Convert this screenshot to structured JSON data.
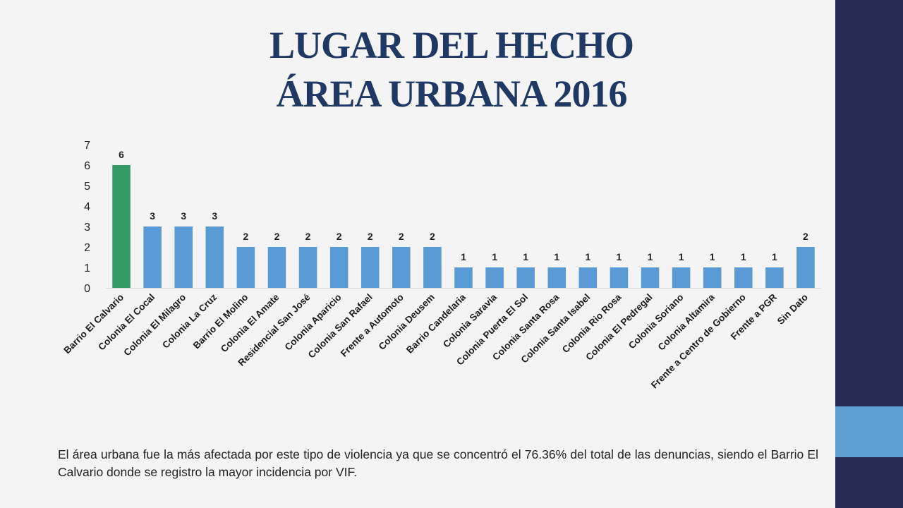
{
  "title": {
    "line1": "LUGAR DEL HECHO",
    "line2": "ÁREA URBANA 2016"
  },
  "caption": "El área urbana fue la más afectada por este tipo de violencia ya que se concentró el 76.36% del total de las denuncias, siendo el Barrio El Calvario donde se registro la mayor incidencia por VIF.",
  "colors": {
    "background": "#f4f4f4",
    "title": "#1f3864",
    "bar": "#5b9bd5",
    "highlight_bar": "#339966",
    "side_bar": "#282b54",
    "side_accent": "#5f9fd2"
  },
  "chart_data": {
    "type": "bar",
    "title": "",
    "xlabel": "",
    "ylabel": "",
    "ylim": [
      0,
      7
    ],
    "yticks": [
      0,
      1,
      2,
      3,
      4,
      5,
      6,
      7
    ],
    "grid": false,
    "legend": "none",
    "data_labels": true,
    "highlight_index": 0,
    "categories": [
      "Barrio El Calvario",
      "Colonia El Cocal",
      "Colonia El Milagro",
      "Colonia La Cruz",
      "Barrio El Molino",
      "Colonia El Amate",
      "Residencial San José",
      "Colonia Aparicio",
      "Colonia San Rafael",
      "Frente a Automoto",
      "Colonia Deusem",
      "Barrio Candelaria",
      "Colonia Saravia",
      "Colonia Puerta El Sol",
      "Colonia Santa Rosa",
      "Colonia Santa Isabel",
      "Colonia Rio Rosa",
      "Colonia El Pedregal",
      "Colonia Soriano",
      "Colonia Altamira",
      "Frente a Centro de Gobierno",
      "Frente a PGR",
      "Sin Dato"
    ],
    "values": [
      6,
      3,
      3,
      3,
      2,
      2,
      2,
      2,
      2,
      2,
      2,
      1,
      1,
      1,
      1,
      1,
      1,
      1,
      1,
      1,
      1,
      1,
      2
    ]
  }
}
